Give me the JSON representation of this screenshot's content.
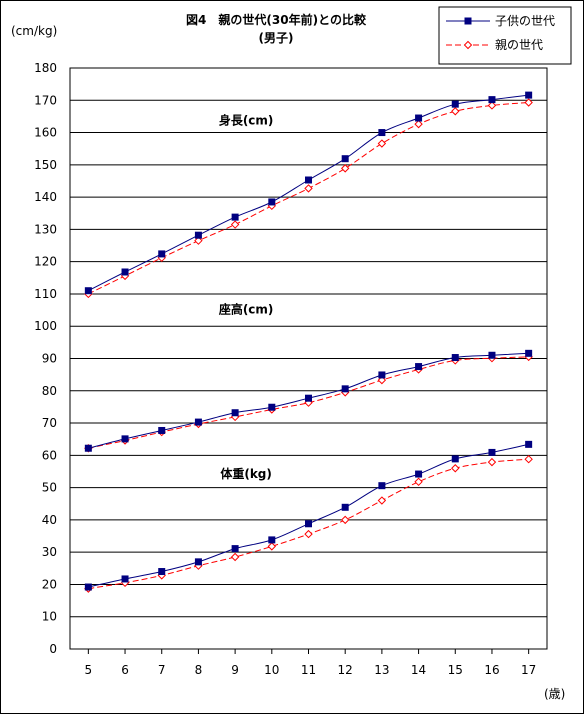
{
  "chart_data": {
    "type": "line",
    "title": "図4　親の世代(30年前)との比較",
    "subtitle": "(男子)",
    "ylabel": "(cm/kg)",
    "xlabel": "(歳)",
    "x": [
      5,
      6,
      7,
      8,
      9,
      10,
      11,
      12,
      13,
      14,
      15,
      16,
      17
    ],
    "ylim": [
      0,
      180
    ],
    "yticks": [
      0,
      10,
      20,
      30,
      40,
      50,
      60,
      70,
      80,
      90,
      100,
      110,
      120,
      130,
      140,
      150,
      160,
      170,
      180
    ],
    "grid": true,
    "legend_position": "top-right",
    "series": [
      {
        "name": "子供の世代",
        "group": "身長",
        "color": "#000080",
        "marker": "square",
        "dashed": false,
        "values": [
          111.0,
          116.8,
          122.4,
          128.2,
          133.8,
          138.5,
          145.3,
          151.9,
          160.0,
          164.5,
          168.8,
          170.2,
          171.6
        ]
      },
      {
        "name": "親の世代",
        "group": "身長",
        "color": "#ff0000",
        "marker": "diamond",
        "dashed": true,
        "values": [
          110.0,
          115.6,
          121.2,
          126.5,
          131.5,
          137.3,
          142.7,
          148.9,
          156.6,
          162.6,
          166.6,
          168.4,
          169.3
        ]
      },
      {
        "name": "子供の世代",
        "group": "座高",
        "color": "#000080",
        "marker": "square",
        "dashed": false,
        "values": [
          62.2,
          65.1,
          67.7,
          70.3,
          73.2,
          74.9,
          77.7,
          80.6,
          84.9,
          87.5,
          90.3,
          91.0,
          91.6
        ]
      },
      {
        "name": "親の世代",
        "group": "座高",
        "color": "#ff0000",
        "marker": "diamond",
        "dashed": true,
        "values": [
          62.2,
          64.6,
          67.2,
          69.7,
          71.9,
          74.2,
          76.3,
          79.5,
          83.3,
          86.6,
          89.4,
          90.1,
          90.5
        ]
      },
      {
        "name": "子供の世代",
        "group": "体重",
        "color": "#000080",
        "marker": "square",
        "dashed": false,
        "values": [
          19.2,
          21.7,
          24.0,
          27.0,
          31.1,
          33.8,
          38.8,
          43.9,
          50.6,
          54.2,
          58.9,
          60.9,
          63.4
        ]
      },
      {
        "name": "親の世代",
        "group": "体重",
        "color": "#ff0000",
        "marker": "diamond",
        "dashed": true,
        "values": [
          18.7,
          20.5,
          22.8,
          25.8,
          28.5,
          31.8,
          35.6,
          40.0,
          46.0,
          51.8,
          56.0,
          57.9,
          58.8
        ]
      }
    ],
    "annotations": [
      {
        "text": "身長(cm)",
        "x": 9.3,
        "y": 162.5
      },
      {
        "text": "座高(cm)",
        "x": 9.3,
        "y": 104.0
      },
      {
        "text": "体重(kg)",
        "x": 9.3,
        "y": 53.0
      }
    ],
    "legend": [
      {
        "label": "子供の世代",
        "color": "#000080",
        "marker": "square",
        "dashed": false
      },
      {
        "label": "親の世代",
        "color": "#ff0000",
        "marker": "diamond",
        "dashed": true
      }
    ]
  }
}
